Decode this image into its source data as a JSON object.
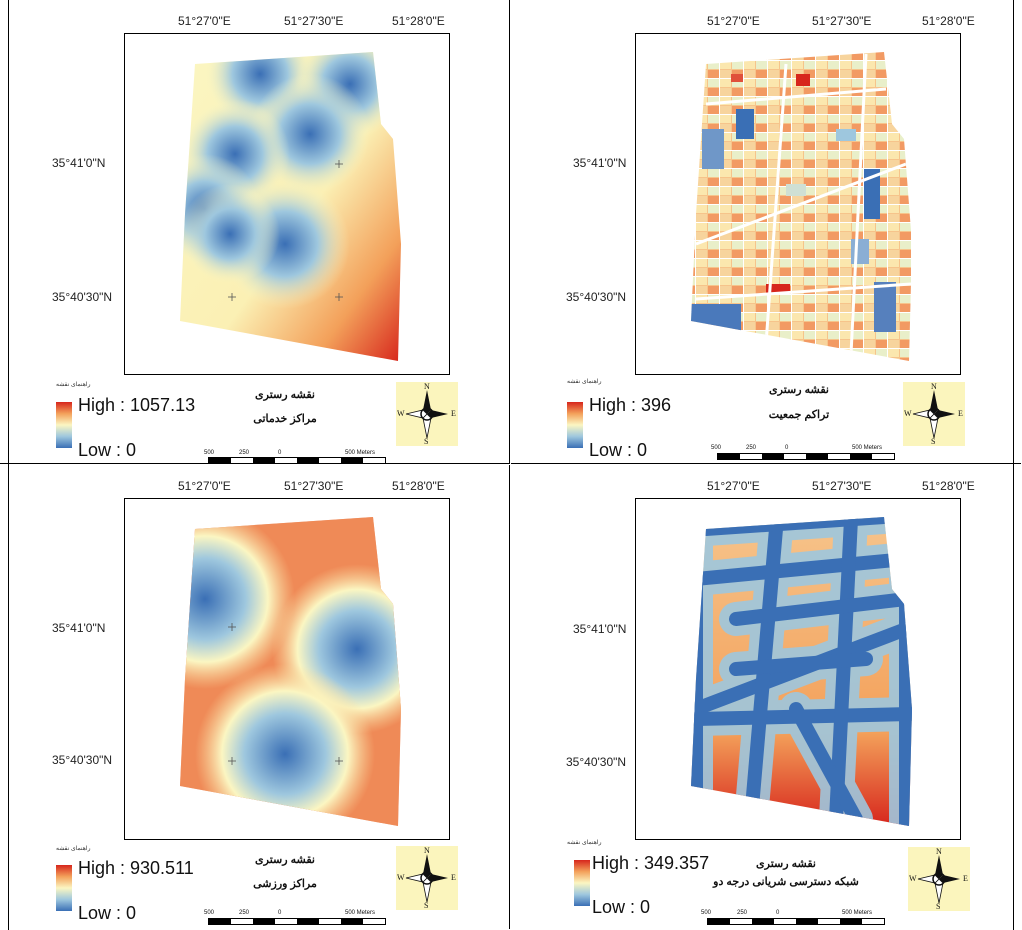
{
  "panels": [
    {
      "title": "نقشه رستری",
      "subtitle": "مراکز خدماتی",
      "legend_label": "راهنمای نقشه",
      "high": "High : 1057.13",
      "low": "Low : 0",
      "lon_labels": [
        "51°27'0\"E",
        "51°27'30\"E",
        "51°28'0\"E"
      ],
      "lat_labels": [
        "35°41'0\"N",
        "35°40'30\"N"
      ],
      "scale_labels": [
        "500",
        "250",
        "0",
        "500 Meters"
      ],
      "compass": {
        "n": "N",
        "s": "S",
        "e": "E",
        "w": "W"
      }
    },
    {
      "title": "نقشه رستری",
      "subtitle": "تراکم جمعیت",
      "legend_label": "راهنمای نقشه",
      "high": "High : 396",
      "low": "Low : 0",
      "lon_labels": [
        "51°27'0\"E",
        "51°27'30\"E",
        "51°28'0\"E"
      ],
      "lat_labels": [
        "35°41'0\"N",
        "35°40'30\"N"
      ],
      "scale_labels": [
        "500",
        "250",
        "0",
        "500 Meters"
      ],
      "compass": {
        "n": "N",
        "s": "S",
        "e": "E",
        "w": "W"
      }
    },
    {
      "title": "نقشه رستری",
      "subtitle": "مراکز ورزشی",
      "legend_label": "راهنمای نقشه",
      "high": "High : 930.511",
      "low": "Low : 0",
      "lon_labels": [
        "51°27'0\"E",
        "51°27'30\"E",
        "51°28'0\"E"
      ],
      "lat_labels": [
        "35°41'0\"N",
        "35°40'30\"N"
      ],
      "scale_labels": [
        "500",
        "250",
        "0",
        "500 Meters"
      ],
      "compass": {
        "n": "N",
        "s": "S",
        "e": "E",
        "w": "W"
      }
    },
    {
      "title": "نقشه رستری",
      "subtitle": "شبکه دسترسی شریانی درجه دو",
      "legend_label": "راهنمای نقشه",
      "high": "High : 349.357",
      "low": "Low : 0",
      "lon_labels": [
        "51°27'0\"E",
        "51°27'30\"E",
        "51°28'0\"E"
      ],
      "lat_labels": [
        "35°41'0\"N",
        "35°40'30\"N"
      ],
      "scale_labels": [
        "500",
        "250",
        "0",
        "500 Meters"
      ],
      "compass": {
        "n": "N",
        "s": "S",
        "e": "E",
        "w": "W"
      }
    }
  ],
  "colors": {
    "high": "#d7261c",
    "mid": "#fbf6c2",
    "low": "#3a6fb5"
  }
}
